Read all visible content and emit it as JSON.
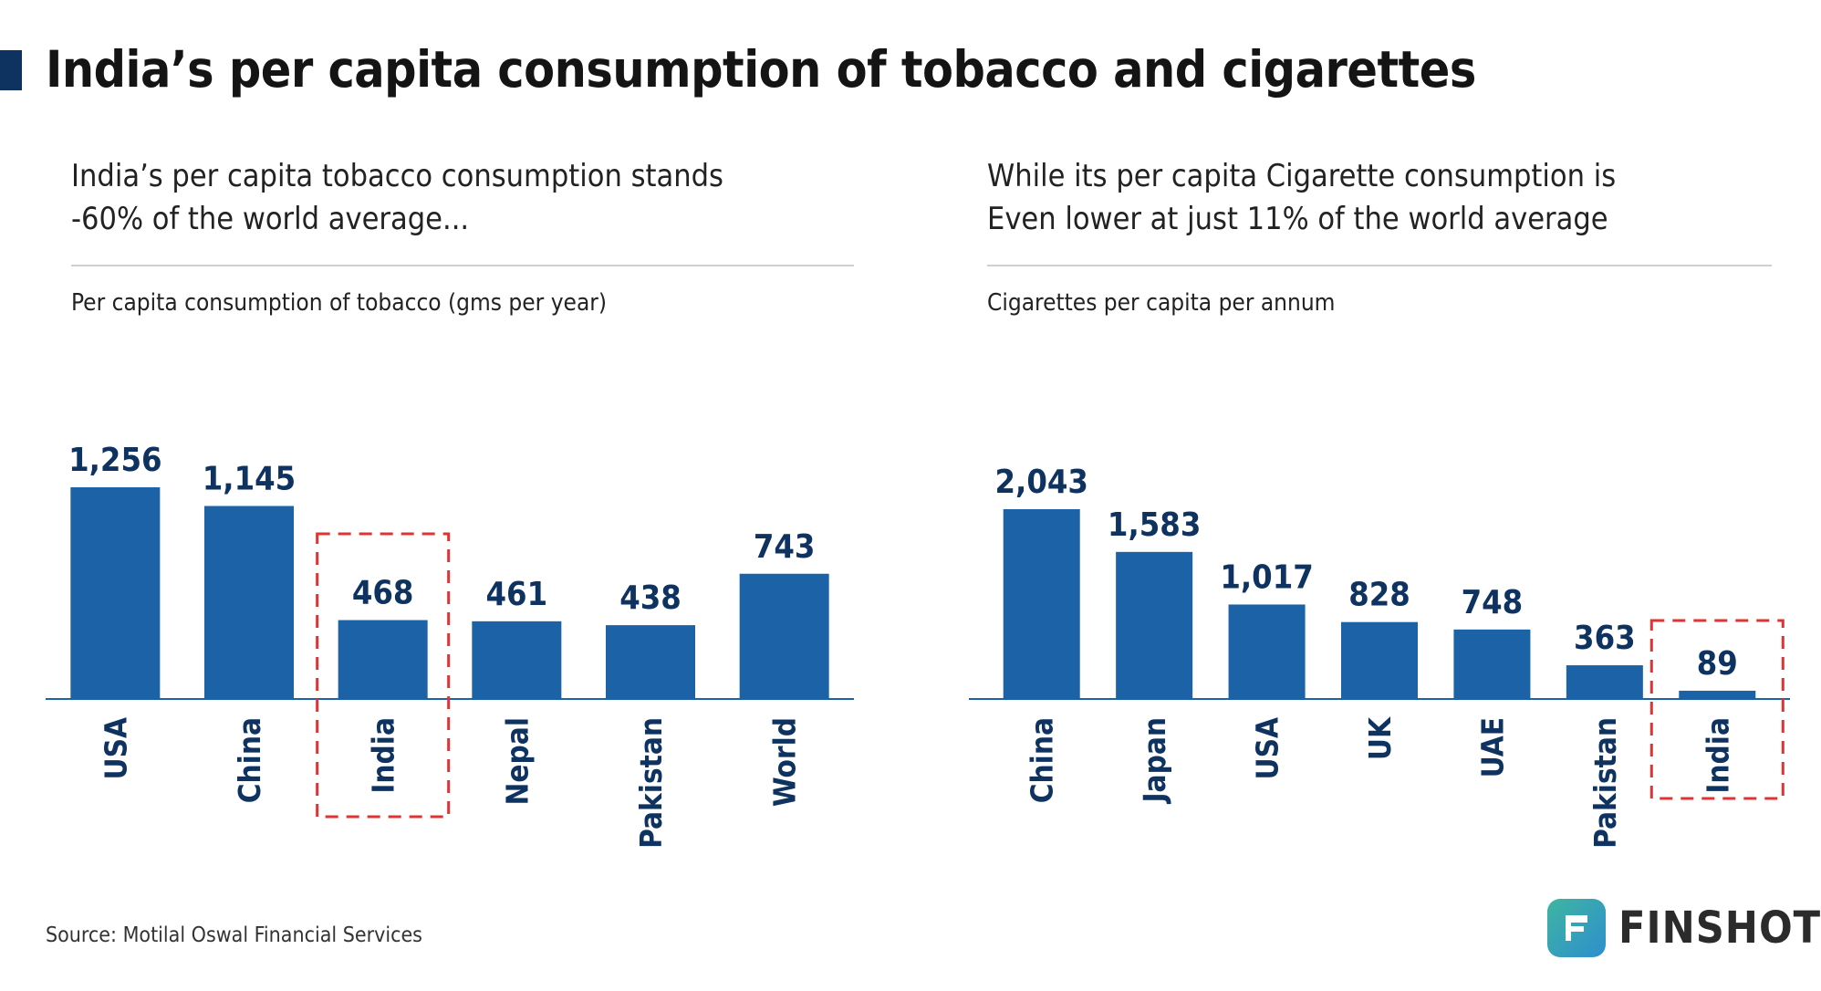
{
  "header": {
    "title": "India’s per capita consumption of tobacco and cigarettes",
    "accent_color": "#0f3361"
  },
  "panels": [
    {
      "subtitle_line1": "India’s per capita tobacco consumption stands",
      "subtitle_line2": "-60% of the world average...",
      "unit_label": "Per capita consumption of tobacco (gms per year)"
    },
    {
      "subtitle_line1": "While its per capita Cigarette consumption is",
      "subtitle_line2": "Even lower at just 11% of the world average",
      "unit_label": "Cigarettes per capita per annum"
    }
  ],
  "chart_data": [
    {
      "type": "bar",
      "categories": [
        "USA",
        "China",
        "India",
        "Nepal",
        "Pakistan",
        "World"
      ],
      "values": [
        1256,
        1145,
        468,
        461,
        438,
        743
      ],
      "value_labels": [
        "1,256",
        "1,145",
        "468",
        "461",
        "438",
        "743"
      ],
      "highlight": "India",
      "ylim": [
        0,
        1256
      ],
      "bar_color": "#1b63a6",
      "label_color": "#0f3361",
      "highlight_color": "#e03333",
      "grid": false,
      "legend": "none"
    },
    {
      "type": "bar",
      "categories": [
        "China",
        "Japan",
        "USA",
        "UK",
        "UAE",
        "Pakistan",
        "India"
      ],
      "values": [
        2043,
        1583,
        1017,
        828,
        748,
        363,
        89
      ],
      "value_labels": [
        "2,043",
        "1,583",
        "1,017",
        "828",
        "748",
        "363",
        "89"
      ],
      "highlight": "India",
      "ylim": [
        0,
        2043
      ],
      "bar_color": "#1b63a6",
      "label_color": "#0f3361",
      "highlight_color": "#e03333",
      "grid": false,
      "legend": "none"
    }
  ],
  "footer": {
    "source": "Source: Motilal Oswal Financial Services",
    "brand": "FINSHOTS",
    "brand_icon": "finshots-logo-icon"
  }
}
